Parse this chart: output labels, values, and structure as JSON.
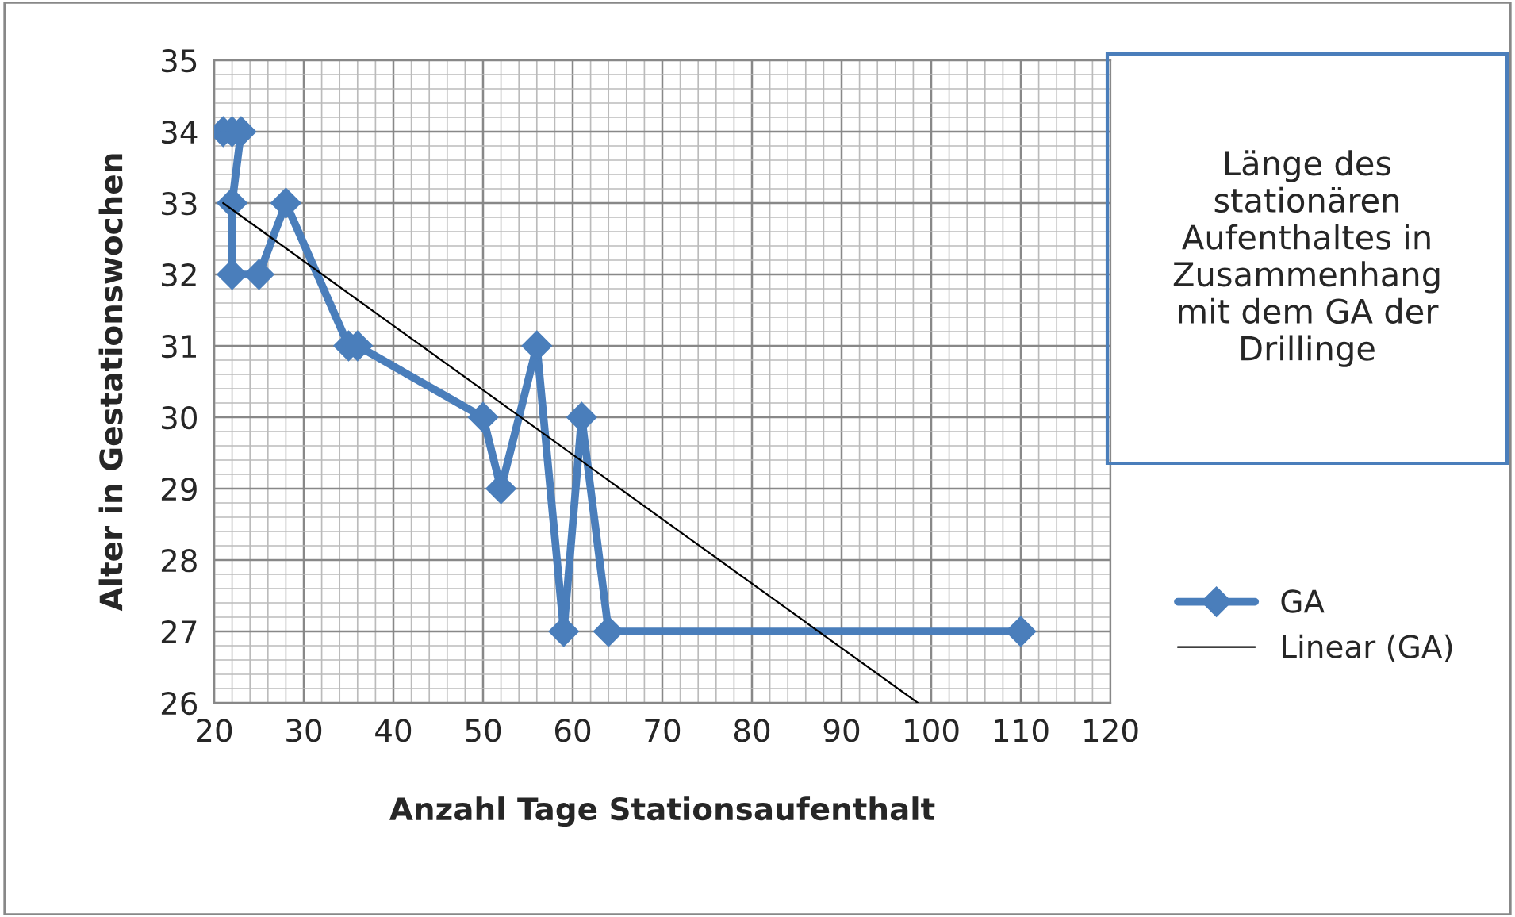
{
  "chart_data": {
    "type": "line",
    "title": "Länge des stationären Aufenthaltes in Zusammenhang mit dem GA der Drillinge",
    "xlabel": "Anzahl Tage Stationsaufenthalt",
    "ylabel": "Alter in Gestationswochen",
    "series": [
      {
        "name": "GA",
        "color": "#4a7ebb",
        "marker": "diamond",
        "x": [
          21,
          22,
          23,
          22,
          22,
          25,
          28,
          35,
          36,
          50,
          52,
          56,
          59,
          61,
          64,
          110
        ],
        "values": [
          34,
          34,
          34,
          33,
          32,
          32,
          33,
          31,
          31,
          30,
          29,
          31,
          27,
          30,
          27,
          27
        ]
      },
      {
        "name": "Linear (GA)",
        "color": "#000000",
        "x": [
          21,
          98.5
        ],
        "values": [
          33,
          26
        ]
      }
    ],
    "xlim": [
      20,
      120
    ],
    "xticks": [
      20,
      30,
      40,
      50,
      60,
      70,
      80,
      90,
      100,
      110,
      120
    ],
    "ylim": [
      26,
      35
    ],
    "yticks": [
      26,
      27,
      28,
      29,
      30,
      31,
      32,
      33,
      34,
      35
    ],
    "grid": true,
    "legend": "right"
  }
}
